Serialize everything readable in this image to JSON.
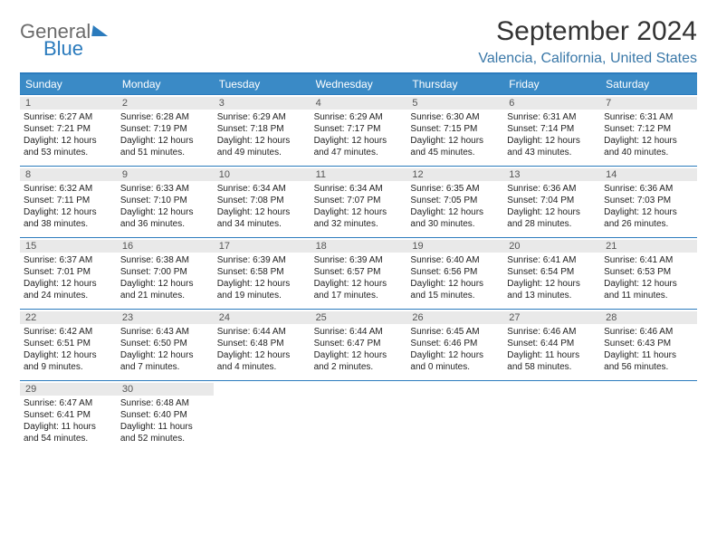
{
  "logo": {
    "general": "General",
    "blue": "Blue"
  },
  "title": "September 2024",
  "subtitle": "Valencia, California, United States",
  "colors": {
    "accent": "#2b7bbd",
    "header_bg": "#3a8ac6",
    "band_bg": "#e9e9e9",
    "subtitle": "#3a78a8"
  },
  "day_names": [
    "Sunday",
    "Monday",
    "Tuesday",
    "Wednesday",
    "Thursday",
    "Friday",
    "Saturday"
  ],
  "weeks": [
    [
      {
        "n": "1",
        "sr": "Sunrise: 6:27 AM",
        "ss": "Sunset: 7:21 PM",
        "d1": "Daylight: 12 hours",
        "d2": "and 53 minutes."
      },
      {
        "n": "2",
        "sr": "Sunrise: 6:28 AM",
        "ss": "Sunset: 7:19 PM",
        "d1": "Daylight: 12 hours",
        "d2": "and 51 minutes."
      },
      {
        "n": "3",
        "sr": "Sunrise: 6:29 AM",
        "ss": "Sunset: 7:18 PM",
        "d1": "Daylight: 12 hours",
        "d2": "and 49 minutes."
      },
      {
        "n": "4",
        "sr": "Sunrise: 6:29 AM",
        "ss": "Sunset: 7:17 PM",
        "d1": "Daylight: 12 hours",
        "d2": "and 47 minutes."
      },
      {
        "n": "5",
        "sr": "Sunrise: 6:30 AM",
        "ss": "Sunset: 7:15 PM",
        "d1": "Daylight: 12 hours",
        "d2": "and 45 minutes."
      },
      {
        "n": "6",
        "sr": "Sunrise: 6:31 AM",
        "ss": "Sunset: 7:14 PM",
        "d1": "Daylight: 12 hours",
        "d2": "and 43 minutes."
      },
      {
        "n": "7",
        "sr": "Sunrise: 6:31 AM",
        "ss": "Sunset: 7:12 PM",
        "d1": "Daylight: 12 hours",
        "d2": "and 40 minutes."
      }
    ],
    [
      {
        "n": "8",
        "sr": "Sunrise: 6:32 AM",
        "ss": "Sunset: 7:11 PM",
        "d1": "Daylight: 12 hours",
        "d2": "and 38 minutes."
      },
      {
        "n": "9",
        "sr": "Sunrise: 6:33 AM",
        "ss": "Sunset: 7:10 PM",
        "d1": "Daylight: 12 hours",
        "d2": "and 36 minutes."
      },
      {
        "n": "10",
        "sr": "Sunrise: 6:34 AM",
        "ss": "Sunset: 7:08 PM",
        "d1": "Daylight: 12 hours",
        "d2": "and 34 minutes."
      },
      {
        "n": "11",
        "sr": "Sunrise: 6:34 AM",
        "ss": "Sunset: 7:07 PM",
        "d1": "Daylight: 12 hours",
        "d2": "and 32 minutes."
      },
      {
        "n": "12",
        "sr": "Sunrise: 6:35 AM",
        "ss": "Sunset: 7:05 PM",
        "d1": "Daylight: 12 hours",
        "d2": "and 30 minutes."
      },
      {
        "n": "13",
        "sr": "Sunrise: 6:36 AM",
        "ss": "Sunset: 7:04 PM",
        "d1": "Daylight: 12 hours",
        "d2": "and 28 minutes."
      },
      {
        "n": "14",
        "sr": "Sunrise: 6:36 AM",
        "ss": "Sunset: 7:03 PM",
        "d1": "Daylight: 12 hours",
        "d2": "and 26 minutes."
      }
    ],
    [
      {
        "n": "15",
        "sr": "Sunrise: 6:37 AM",
        "ss": "Sunset: 7:01 PM",
        "d1": "Daylight: 12 hours",
        "d2": "and 24 minutes."
      },
      {
        "n": "16",
        "sr": "Sunrise: 6:38 AM",
        "ss": "Sunset: 7:00 PM",
        "d1": "Daylight: 12 hours",
        "d2": "and 21 minutes."
      },
      {
        "n": "17",
        "sr": "Sunrise: 6:39 AM",
        "ss": "Sunset: 6:58 PM",
        "d1": "Daylight: 12 hours",
        "d2": "and 19 minutes."
      },
      {
        "n": "18",
        "sr": "Sunrise: 6:39 AM",
        "ss": "Sunset: 6:57 PM",
        "d1": "Daylight: 12 hours",
        "d2": "and 17 minutes."
      },
      {
        "n": "19",
        "sr": "Sunrise: 6:40 AM",
        "ss": "Sunset: 6:56 PM",
        "d1": "Daylight: 12 hours",
        "d2": "and 15 minutes."
      },
      {
        "n": "20",
        "sr": "Sunrise: 6:41 AM",
        "ss": "Sunset: 6:54 PM",
        "d1": "Daylight: 12 hours",
        "d2": "and 13 minutes."
      },
      {
        "n": "21",
        "sr": "Sunrise: 6:41 AM",
        "ss": "Sunset: 6:53 PM",
        "d1": "Daylight: 12 hours",
        "d2": "and 11 minutes."
      }
    ],
    [
      {
        "n": "22",
        "sr": "Sunrise: 6:42 AM",
        "ss": "Sunset: 6:51 PM",
        "d1": "Daylight: 12 hours",
        "d2": "and 9 minutes."
      },
      {
        "n": "23",
        "sr": "Sunrise: 6:43 AM",
        "ss": "Sunset: 6:50 PM",
        "d1": "Daylight: 12 hours",
        "d2": "and 7 minutes."
      },
      {
        "n": "24",
        "sr": "Sunrise: 6:44 AM",
        "ss": "Sunset: 6:48 PM",
        "d1": "Daylight: 12 hours",
        "d2": "and 4 minutes."
      },
      {
        "n": "25",
        "sr": "Sunrise: 6:44 AM",
        "ss": "Sunset: 6:47 PM",
        "d1": "Daylight: 12 hours",
        "d2": "and 2 minutes."
      },
      {
        "n": "26",
        "sr": "Sunrise: 6:45 AM",
        "ss": "Sunset: 6:46 PM",
        "d1": "Daylight: 12 hours",
        "d2": "and 0 minutes."
      },
      {
        "n": "27",
        "sr": "Sunrise: 6:46 AM",
        "ss": "Sunset: 6:44 PM",
        "d1": "Daylight: 11 hours",
        "d2": "and 58 minutes."
      },
      {
        "n": "28",
        "sr": "Sunrise: 6:46 AM",
        "ss": "Sunset: 6:43 PM",
        "d1": "Daylight: 11 hours",
        "d2": "and 56 minutes."
      }
    ],
    [
      {
        "n": "29",
        "sr": "Sunrise: 6:47 AM",
        "ss": "Sunset: 6:41 PM",
        "d1": "Daylight: 11 hours",
        "d2": "and 54 minutes."
      },
      {
        "n": "30",
        "sr": "Sunrise: 6:48 AM",
        "ss": "Sunset: 6:40 PM",
        "d1": "Daylight: 11 hours",
        "d2": "and 52 minutes."
      },
      null,
      null,
      null,
      null,
      null
    ]
  ]
}
